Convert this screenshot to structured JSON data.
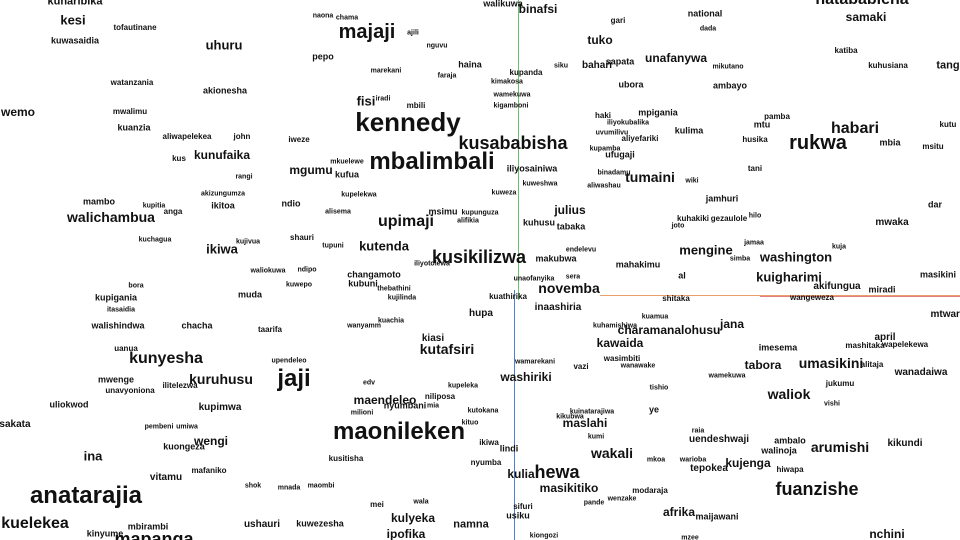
{
  "words": [
    "kunaribika",
    "walikuwa",
    "kesi",
    "naona",
    "chama",
    "binafsi",
    "gari",
    "national",
    "hatababiena",
    "samaki",
    "kuwasaidia",
    "tofautinane",
    "majaji",
    "ajili",
    "dada",
    "tuko",
    "katiba",
    "tang",
    "uhuru",
    "nguvu",
    "pepo",
    "haina",
    "kupanda",
    "siku",
    "bahari",
    "sapata",
    "unafanywa",
    "mikutano",
    "kuhusiana",
    "watanzania",
    "marekani",
    "faraja",
    "kimakosa",
    "ubora",
    "ambayo",
    "akionesha",
    "wamekuwa",
    "kigamboni",
    "fisi",
    "iradi",
    "mbili",
    "mwalimu",
    "kennedy",
    "haki",
    "mpigania",
    "mtu",
    "pamba",
    "wemo",
    "iliyokubalika",
    "kuanzia",
    "uvumilivu",
    "habari",
    "kutu",
    "aliwapelekea",
    "john",
    "iweze",
    "kusababisha",
    "aliyefariki",
    "kulima",
    "husika",
    "rukwa",
    "mbia",
    "msitu",
    "ufugaji",
    "kupamba",
    "kus",
    "kunufaika",
    "mbalimbali",
    "iliyosainiwa",
    "tani",
    "rangi",
    "mgumu",
    "mkuelewe",
    "binadamu",
    "tumaini",
    "wiki",
    "kufua",
    "kuweshwa",
    "aliwashau",
    "akizungumza",
    "kupelekwa",
    "mambo",
    "ikitoa",
    "kuweza",
    "jamhuri",
    "dar",
    "ndio",
    "julius",
    "kupitia",
    "alisema",
    "msimu",
    "kupunguza",
    "walichambua",
    "anga",
    "alifikia",
    "hilo",
    "kuhakiki",
    "gezaulole",
    "mwaka",
    "upimaji",
    "kuhusu",
    "tabaka",
    "joto",
    "kuchagua",
    "shauri",
    "kutenda",
    "jamaa",
    "kuja",
    "ikiwa",
    "kujivua",
    "tupuni",
    "endelevu",
    "simba",
    "mengine",
    "washington",
    "kusikilizwa",
    "makubwa",
    "mahakimu",
    "iliyotolewa",
    "al",
    "waliokuwa",
    "ndipo",
    "changamoto",
    "unaofanyika",
    "sera",
    "masikini",
    "kuigharimi",
    "kubuni",
    "kuwepo",
    "thebathini",
    "novemba",
    "akifungua",
    "miradi",
    "bora",
    "kujilinda",
    "kuathirika",
    "wangeweza",
    "kupigania",
    "muda",
    "shitaka",
    "itasaidia",
    "inaashiria",
    "mtwara",
    "hupa",
    "kuamua",
    "walishindwa",
    "chacha",
    "taarifa",
    "kuachia",
    "wanyamm",
    "jana",
    "charamanalohusu",
    "kuhamishiwa",
    "april",
    "kiasi",
    "imesema",
    "mashitaka",
    "uanua",
    "kunyesha",
    "upendeleo",
    "kawaida",
    "kutafsiri",
    "wapelekewa",
    "jaji",
    "tabora",
    "wasimbiti",
    "umasikini",
    "alitaja",
    "kuruhusu",
    "mwenge",
    "wamarekani",
    "wanawake",
    "vazi",
    "washiriki",
    "wanadaiwa",
    "wamekuwa",
    "jukumu",
    "ilitelezwa",
    "unavyoniona",
    "edv",
    "waliok",
    "niliposa",
    "kupeleka",
    "tishio",
    "uliokwod",
    "maendeleo",
    "nyumbani",
    "mia",
    "vishi",
    "kupimwa",
    "milioni",
    "kutokana",
    "ye",
    "maonileken",
    "sakata",
    "pembeni",
    "umiwa",
    "kituo",
    "maslahi",
    "kuinatarajiwa",
    "kikubwa",
    "raia",
    "wengi",
    "kumi",
    "uendeshwaji",
    "ambalo",
    "kikundi",
    "ikiwa",
    "arumishi",
    "kuongeza",
    "walinoja",
    "lindi",
    "ina",
    "wakali",
    "mafaniko",
    "kusitisha",
    "nyumba",
    "mkoa",
    "warioba",
    "kujenga",
    "tepokea",
    "hiwapa",
    "vitamu",
    "kulia",
    "hewa",
    "masikitiko",
    "shok",
    "mnada",
    "maombi",
    "modaraja",
    "anatarajia",
    "fuanzishe",
    "wenzake",
    "pande",
    "wala",
    "mei",
    "sifuri",
    "usiku",
    "kuelekea",
    "kulyeka",
    "afrika",
    "maijawani",
    "kuwezesha",
    "ushauri",
    "mbirambi",
    "namna",
    "kinyume",
    "mapanga",
    "ipofika",
    "kiongozi",
    "mzee",
    "nchini",
    "hichi",
    "unatarajiwa",
    "wahamie"
  ]
}
